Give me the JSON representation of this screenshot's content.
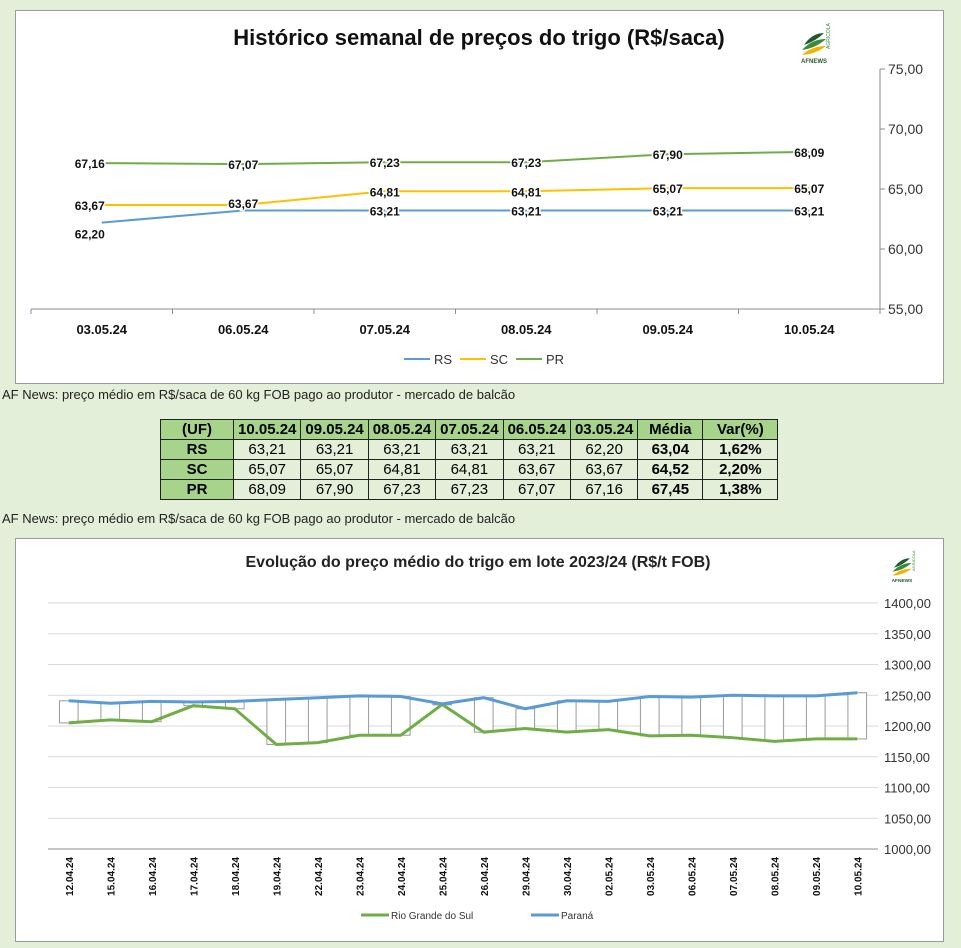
{
  "chart1": {
    "title": "Histórico semanal de preços do trigo (R$/saca)",
    "logo_text": "AFNEWS",
    "logo_subtext": "AGRICOLA",
    "chart_data": {
      "type": "line",
      "categories": [
        "03.05.24",
        "06.05.24",
        "07.05.24",
        "08.05.24",
        "09.05.24",
        "10.05.24"
      ],
      "y_ticks": [
        "55,00",
        "60,00",
        "65,00",
        "70,00",
        "75,00"
      ],
      "ylim": [
        55,
        75
      ],
      "y_axis_position": "right",
      "grid": false,
      "legend": "bottom",
      "series": [
        {
          "name": "RS",
          "color": "#5b9bd5",
          "values": [
            62.2,
            63.21,
            63.21,
            63.21,
            63.21,
            63.21
          ],
          "labels": [
            "62,20",
            "",
            "63,21",
            "63,21",
            "63,21",
            "63,21"
          ]
        },
        {
          "name": "SC",
          "color": "#ffc000",
          "values": [
            63.67,
            63.67,
            64.81,
            64.81,
            65.07,
            65.07
          ],
          "labels": [
            "63,67",
            "63,67",
            "64,81",
            "64,81",
            "65,07",
            "65,07"
          ]
        },
        {
          "name": "PR",
          "color": "#70ad47",
          "values": [
            67.16,
            67.07,
            67.23,
            67.23,
            67.9,
            68.09
          ],
          "labels": [
            "67,16",
            "67,07",
            "67,23",
            "67,23",
            "67,90",
            "68,09"
          ]
        }
      ]
    }
  },
  "note1": "AF News: preço médio em R$/saca de 60 kg FOB pago ao produtor - mercado de balcão",
  "table": {
    "headers": [
      "(UF)",
      "10.05.24",
      "09.05.24",
      "08.05.24",
      "07.05.24",
      "06.05.24",
      "03.05.24",
      "Média",
      "Var(%)"
    ],
    "rows": [
      [
        "RS",
        "63,21",
        "63,21",
        "63,21",
        "63,21",
        "63,21",
        "62,20",
        "63,04",
        "1,62%"
      ],
      [
        "SC",
        "65,07",
        "65,07",
        "64,81",
        "64,81",
        "63,67",
        "63,67",
        "64,52",
        "2,20%"
      ],
      [
        "PR",
        "68,09",
        "67,90",
        "67,23",
        "67,23",
        "67,07",
        "67,16",
        "67,45",
        "1,38%"
      ]
    ]
  },
  "note2": "AF News: preço médio em R$/saca de 60 kg FOB pago ao produtor - mercado de balcão",
  "chart2": {
    "title": "Evolução do preço médio do trigo em lote 2023/24 (R$/t FOB)",
    "logo_text": "AFNEWS",
    "logo_subtext": "AGRICOLA",
    "chart_data": {
      "type": "line",
      "categories": [
        "12.04.24",
        "15.04.24",
        "16.04.24",
        "17.04.24",
        "18.04.24",
        "19.04.24",
        "22.04.24",
        "23.04.24",
        "24.04.24",
        "25.04.24",
        "26.04.24",
        "29.04.24",
        "30.04.24",
        "02.05.24",
        "03.05.24",
        "06.05.24",
        "07.05.24",
        "08.05.24",
        "09.05.24",
        "10.05.24"
      ],
      "y_ticks": [
        "1000,00",
        "1050,00",
        "1100,00",
        "1150,00",
        "1200,00",
        "1250,00",
        "1300,00",
        "1350,00",
        "1400,00"
      ],
      "ylim": [
        1000,
        1400
      ],
      "y_axis_position": "right",
      "grid": true,
      "legend": "bottom",
      "series": [
        {
          "name": "Rio Grande do Sul",
          "color": "#70ad47",
          "values": [
            1205,
            1210,
            1207,
            1233,
            1228,
            1170,
            1173,
            1185,
            1185,
            1235,
            1190,
            1196,
            1190,
            1194,
            1184,
            1185,
            1181,
            1175,
            1179,
            1179
          ]
        },
        {
          "name": "Paraná",
          "color": "#5b9bd5",
          "values": [
            1241,
            1237,
            1240,
            1239,
            1240,
            1243,
            1246,
            1249,
            1248,
            1236,
            1246,
            1228,
            1241,
            1240,
            1248,
            1247,
            1250,
            1249,
            1249,
            1254
          ]
        }
      ]
    }
  }
}
